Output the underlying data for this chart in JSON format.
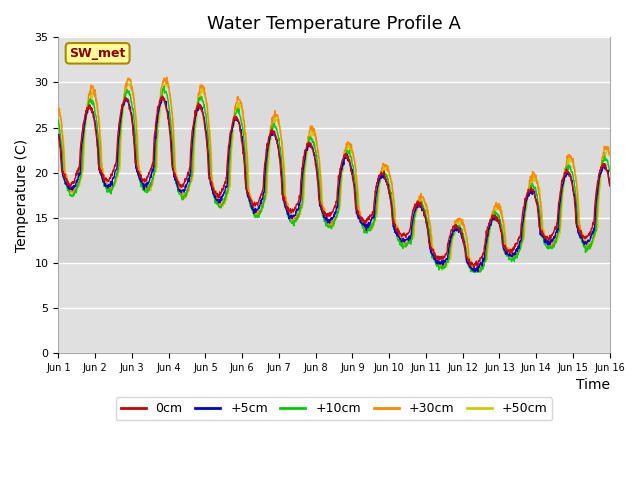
{
  "title": "Water Temperature Profile A",
  "xlabel": "Time",
  "ylabel": "Temperature (C)",
  "ylim": [
    0,
    35
  ],
  "xlim": [
    0,
    15
  ],
  "yticks": [
    0,
    5,
    10,
    15,
    20,
    25,
    30,
    35
  ],
  "xtick_labels": [
    "Jun 1",
    "Jun 2",
    "Jun 3",
    "Jun 4",
    "Jun 5",
    "Jun 6",
    "Jun 7",
    "Jun 8",
    "Jun 9",
    "Jun 10",
    "Jun 11",
    "Jun 12",
    "Jun 13",
    "Jun 14",
    "Jun 15",
    "Jun 16"
  ],
  "legend_labels": [
    "0cm",
    "+5cm",
    "+10cm",
    "+30cm",
    "+50cm"
  ],
  "legend_colors": [
    "#cc0000",
    "#0000cc",
    "#00cc00",
    "#ff8800",
    "#cccc00"
  ],
  "bg_color": "#ffffff",
  "plot_bg_upper": "#e8e8e8",
  "plot_bg_lower": "#d0d0d0",
  "grid_color": "#cccccc",
  "annotation_text": "SW_met",
  "annotation_bg": "#ffff99",
  "annotation_border": "#aa8800",
  "annotation_text_color": "#880000",
  "title_fontsize": 13,
  "label_fontsize": 10,
  "tick_fontsize": 8,
  "band_lower": 10,
  "band_upper": 30
}
